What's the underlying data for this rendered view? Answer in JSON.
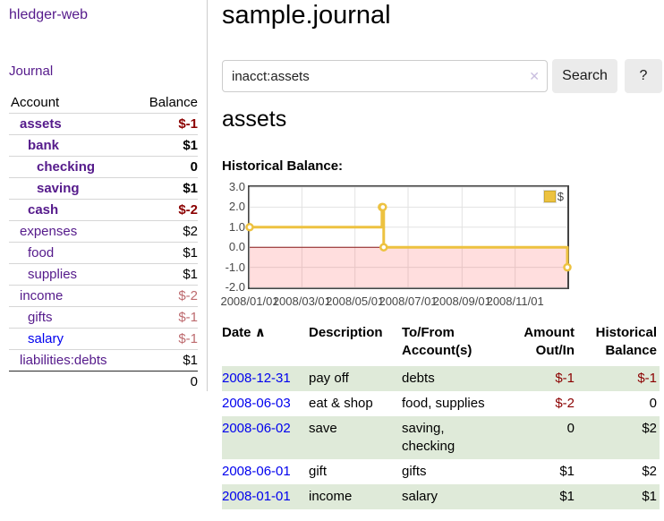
{
  "colors": {
    "link_purple": "#551a8b",
    "link_blue": "#0000ee",
    "negative_strong": "#8b0000",
    "negative_soft": "#bd6a6e",
    "row_stripe_green": "#dfead9",
    "series_yellow": "#edc240",
    "zero_line_red": "#8b1c1c",
    "negative_region_pink": "rgba(255,70,70,0.18)"
  },
  "sidebar": {
    "app_title": "hledger-web",
    "nav_journal": "Journal",
    "table": {
      "header_account": "Account",
      "header_balance": "Balance",
      "rows": [
        {
          "account": "assets",
          "balance": "$-1"
        },
        {
          "account": "bank",
          "balance": "$1"
        },
        {
          "account": "checking",
          "balance": "0"
        },
        {
          "account": "saving",
          "balance": "$1"
        },
        {
          "account": "cash",
          "balance": "$-2"
        },
        {
          "account": "expenses",
          "balance": "$2"
        },
        {
          "account": "food",
          "balance": "$1"
        },
        {
          "account": "supplies",
          "balance": "$1"
        },
        {
          "account": "income",
          "balance": "$-2"
        },
        {
          "account": "gifts",
          "balance": "$-1"
        },
        {
          "account": "salary",
          "balance": "$-1"
        },
        {
          "account": "liabilities:debts",
          "balance": "$1"
        }
      ],
      "total": "0"
    }
  },
  "main": {
    "page_title": "sample.journal",
    "search": {
      "value": "inacct:assets",
      "clear_icon": "✕",
      "search_button": "Search",
      "help_button": "?"
    },
    "account_heading": "assets",
    "chart_heading": "Historical Balance:",
    "register": {
      "headers": {
        "date": "Date",
        "sort_icon": "∧",
        "description": "Description",
        "accounts": "To/From Account(s)",
        "amount": "Amount Out/In",
        "balance": "Historical Balance"
      },
      "rows": [
        {
          "date": "2008-12-31",
          "description": "pay off",
          "accounts": "debts",
          "amount": "$-1",
          "balance": "$-1"
        },
        {
          "date": "2008-06-03",
          "description": "eat & shop",
          "accounts": "food, supplies",
          "amount": "$-2",
          "balance": "0"
        },
        {
          "date": "2008-06-02",
          "description": "save",
          "accounts": "saving, checking",
          "amount": "0",
          "balance": "$2"
        },
        {
          "date": "2008-06-01",
          "description": "gift",
          "accounts": "gifts",
          "amount": "$1",
          "balance": "$2"
        },
        {
          "date": "2008-01-01",
          "description": "income",
          "accounts": "salary",
          "amount": "$1",
          "balance": "$1"
        }
      ]
    }
  },
  "chart_data": {
    "type": "line",
    "title": "Historical Balance",
    "series": [
      {
        "name": "$",
        "step": true,
        "points": [
          [
            "2008-01-01",
            1
          ],
          [
            "2008-06-01",
            2
          ],
          [
            "2008-06-02",
            2
          ],
          [
            "2008-06-03",
            0
          ],
          [
            "2008-12-31",
            -1
          ]
        ]
      }
    ],
    "x_range": [
      "2008-01-01",
      "2008-12-31"
    ],
    "x_tick_labels": [
      "2008/01/01",
      "2008/03/01",
      "2008/05/01",
      "2008/07/01",
      "2008/09/01",
      "2008/11/01"
    ],
    "y_ticks": [
      3.0,
      2.0,
      1.0,
      0.0,
      -1.0,
      -2.0
    ],
    "ylim": [
      -2,
      3
    ],
    "legend": {
      "label": "$",
      "position": "top-right"
    },
    "grid": true,
    "zero_line": true,
    "negative_region_shaded": true
  }
}
